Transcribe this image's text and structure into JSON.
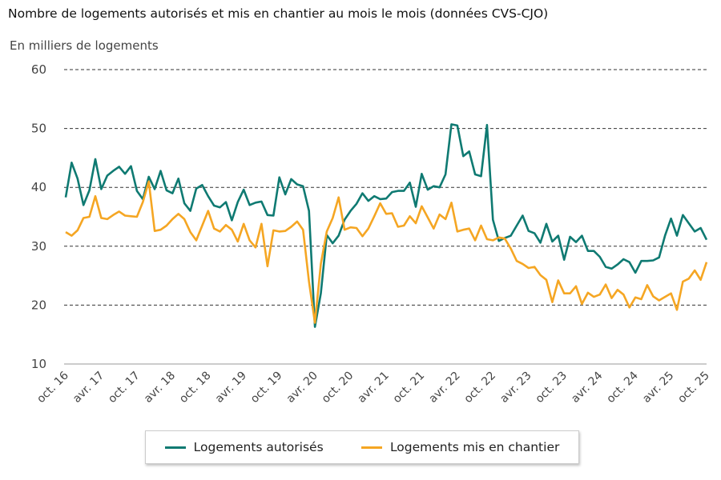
{
  "chart_data": {
    "type": "line",
    "title": "Nombre de logements autorisés et mis en chantier au mois le mois (données CVS-CJO)",
    "ylabel": "En milliers de logements",
    "ylim": [
      10,
      60
    ],
    "yticks": [
      10,
      20,
      30,
      40,
      50,
      60
    ],
    "grid": true,
    "legend_position": "bottom",
    "x_start": "oct. 2016",
    "x_end": "oct. 2025",
    "frequency": "monthly",
    "xtick_labels": [
      "oct. 16",
      "avr. 17",
      "oct. 17",
      "avr. 18",
      "oct. 18",
      "avr. 19",
      "oct. 19",
      "avr. 20",
      "oct. 20",
      "avr. 21",
      "oct. 21",
      "avr. 22",
      "oct. 22",
      "avr. 23",
      "oct. 23",
      "avr. 24",
      "oct. 24",
      "avr. 25",
      "oct. 25"
    ],
    "series": [
      {
        "name": "Logements autorisés",
        "color": "#0f7a72",
        "values": [
          38.3,
          44.2,
          41.5,
          37,
          39.5,
          44.8,
          39.7,
          42,
          42.8,
          43.5,
          42.3,
          43.6,
          39.4,
          38,
          41.8,
          39.7,
          42.8,
          39.5,
          39,
          41.5,
          37.3,
          36,
          39.8,
          40.4,
          38.5,
          36.9,
          36.6,
          37.5,
          34.4,
          37.5,
          39.6,
          37,
          37.4,
          37.6,
          35.3,
          35.2,
          41.7,
          38.8,
          41.4,
          40.5,
          40.2,
          36,
          16.3,
          22,
          31.9,
          30.5,
          31.8,
          34.5,
          36,
          37.2,
          39,
          37.7,
          38.5,
          38,
          38.1,
          39.2,
          39.4,
          39.4,
          40.8,
          36.7,
          42.3,
          39.6,
          40.2,
          40,
          42.2,
          50.7,
          50.5,
          45.3,
          46.1,
          42.2,
          41.9,
          50.6,
          34.5,
          30.9,
          31.4,
          31.8,
          33.5,
          35.2,
          32.6,
          32.2,
          30.6,
          33.8,
          30.8,
          31.8,
          27.7,
          31.6,
          30.7,
          31.8,
          29.2,
          29.2,
          28.2,
          26.5,
          26.2,
          26.9,
          27.8,
          27.3,
          25.5,
          27.5,
          27.5,
          27.6,
          28.1,
          31.8,
          34.7,
          31.8,
          35.3,
          33.9,
          32.5,
          33.1,
          31.1
        ]
      },
      {
        "name": "Logements mis en chantier",
        "color": "#f5a623",
        "values": [
          32.4,
          31.8,
          32.7,
          34.8,
          35,
          38.5,
          34.8,
          34.6,
          35.3,
          35.9,
          35.2,
          35.1,
          35,
          37.5,
          41,
          32.6,
          32.8,
          33.5,
          34.6,
          35.5,
          34.6,
          32.4,
          31,
          33.5,
          36,
          33,
          32.5,
          33.6,
          32.8,
          30.8,
          33.8,
          31,
          29.8,
          33.8,
          26.6,
          32.7,
          32.5,
          32.6,
          33.3,
          34.2,
          32.8,
          24,
          17,
          27,
          32.5,
          34.8,
          38.3,
          32.8,
          33.2,
          33.1,
          31.7,
          33,
          35.1,
          37.3,
          35.5,
          35.6,
          33.3,
          33.5,
          35.1,
          33.9,
          36.8,
          34.9,
          33,
          35.4,
          34.6,
          37.4,
          32.5,
          32.8,
          33,
          31,
          33.5,
          31.2,
          31,
          31.5,
          31.3,
          29.6,
          27.5,
          27,
          26.3,
          26.5,
          25.1,
          24.3,
          20.5,
          24.2,
          22,
          22,
          23.2,
          20.2,
          22.1,
          21.4,
          21.8,
          23.5,
          21.2,
          22.6,
          21.8,
          19.6,
          21.3,
          21,
          23.4,
          21.5,
          20.8,
          21.4,
          22,
          19.2,
          24,
          24.5,
          25.9,
          24.3,
          27.3
        ]
      }
    ]
  }
}
